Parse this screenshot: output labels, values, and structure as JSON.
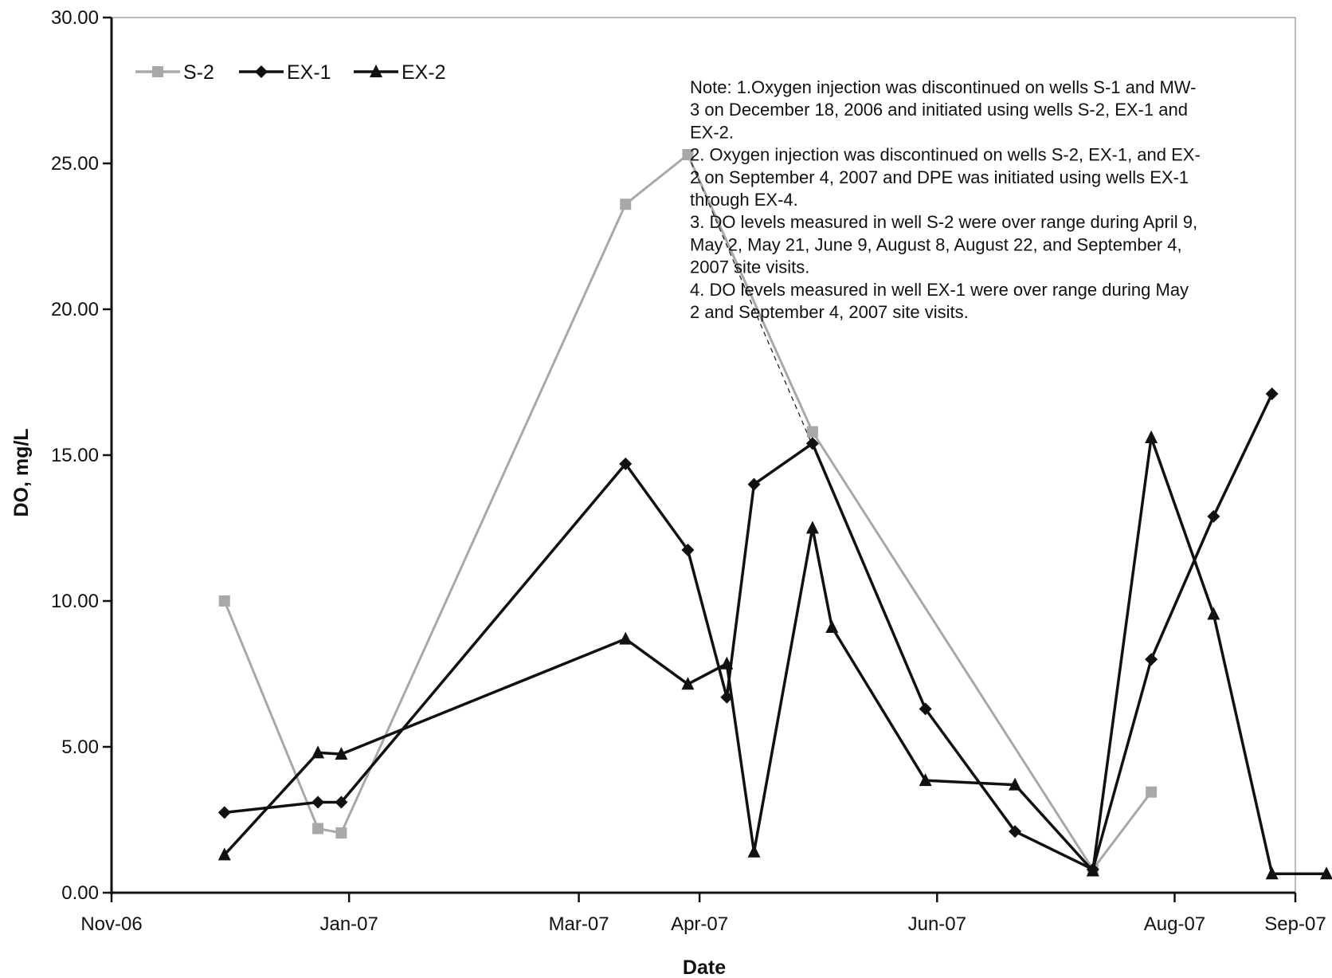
{
  "chart_data": {
    "type": "line",
    "title": "",
    "xlabel": "Date",
    "ylabel": "DO, mg/L",
    "xlim": [
      "2006-11-01",
      "2007-09-01"
    ],
    "ylim": [
      0,
      30
    ],
    "x_ticks": [
      "Nov-06",
      "Jan-07",
      "Mar-07",
      "Apr-07",
      "Jun-07",
      "Aug-07",
      "Sep-07"
    ],
    "y_ticks": [
      "0.00",
      "5.00",
      "10.00",
      "15.00",
      "20.00",
      "25.00",
      "30.00"
    ],
    "grid": false,
    "legend_position": "top-left",
    "series": [
      {
        "name": "S-2",
        "color": "#a8a8a8",
        "marker": "square",
        "points": [
          {
            "x": "2006-11-30",
            "y": 10.0
          },
          {
            "x": "2006-12-24",
            "y": 2.2
          },
          {
            "x": "2006-12-30",
            "y": 2.05
          },
          {
            "x": "2007-03-13",
            "y": 23.6
          },
          {
            "x": "2007-03-29",
            "y": 25.3
          },
          {
            "x": "2007-04-30",
            "y": 15.8
          },
          {
            "x": "2007-07-11",
            "y": 0.8
          },
          {
            "x": "2007-07-26",
            "y": 3.45
          }
        ],
        "dashed_segment": {
          "from": "2007-03-29",
          "to": "2007-05-29",
          "to_y": 6.3
        }
      },
      {
        "name": "EX-1",
        "color": "#111111",
        "marker": "diamond",
        "points": [
          {
            "x": "2006-11-30",
            "y": 2.75
          },
          {
            "x": "2006-12-24",
            "y": 3.1
          },
          {
            "x": "2006-12-30",
            "y": 3.1
          },
          {
            "x": "2007-03-13",
            "y": 14.7
          },
          {
            "x": "2007-03-29",
            "y": 11.75
          },
          {
            "x": "2007-04-08",
            "y": 6.7
          },
          {
            "x": "2007-04-15",
            "y": 14.0
          },
          {
            "x": "2007-04-30",
            "y": 15.4
          },
          {
            "x": "2007-05-29",
            "y": 6.3
          },
          {
            "x": "2007-06-21",
            "y": 2.1
          },
          {
            "x": "2007-07-11",
            "y": 0.8
          },
          {
            "x": "2007-07-26",
            "y": 8.0
          },
          {
            "x": "2007-08-11",
            "y": 12.9
          },
          {
            "x": "2007-08-26",
            "y": 17.1
          }
        ]
      },
      {
        "name": "EX-2",
        "color": "#111111",
        "marker": "triangle",
        "points": [
          {
            "x": "2006-11-30",
            "y": 1.3
          },
          {
            "x": "2006-12-24",
            "y": 4.8
          },
          {
            "x": "2006-12-30",
            "y": 4.75
          },
          {
            "x": "2007-03-13",
            "y": 8.7
          },
          {
            "x": "2007-03-29",
            "y": 7.15
          },
          {
            "x": "2007-04-08",
            "y": 7.85
          },
          {
            "x": "2007-04-15",
            "y": 1.4
          },
          {
            "x": "2007-04-30",
            "y": 12.5
          },
          {
            "x": "2007-05-05",
            "y": 9.1
          },
          {
            "x": "2007-05-29",
            "y": 3.85
          },
          {
            "x": "2007-06-21",
            "y": 3.7
          },
          {
            "x": "2007-07-11",
            "y": 0.75
          },
          {
            "x": "2007-07-26",
            "y": 15.6
          },
          {
            "x": "2007-08-11",
            "y": 9.55
          },
          {
            "x": "2007-08-26",
            "y": 0.65
          },
          {
            "x": "2007-09-09",
            "y": 0.65
          }
        ]
      }
    ],
    "annotation": [
      "Note: 1.Oxygen injection was discontinued on wells S-1 and MW-",
      "3 on December 18, 2006 and initiated using wells S-2, EX-1 and",
      "EX-2.",
      "2. Oxygen injection was discontinued on wells S-2, EX-1, and EX-",
      "2 on September 4, 2007 and DPE was initiated using wells EX-1",
      "through EX-4.",
      "3. DO levels measured in well S-2 were over range during April 9,",
      "May 2, May 21, June 9, August 8, August 22, and  September 4,",
      "2007 site visits.",
      "4. DO levels measured in well EX-1 were over range during May",
      "2 and September 4, 2007 site visits."
    ]
  }
}
